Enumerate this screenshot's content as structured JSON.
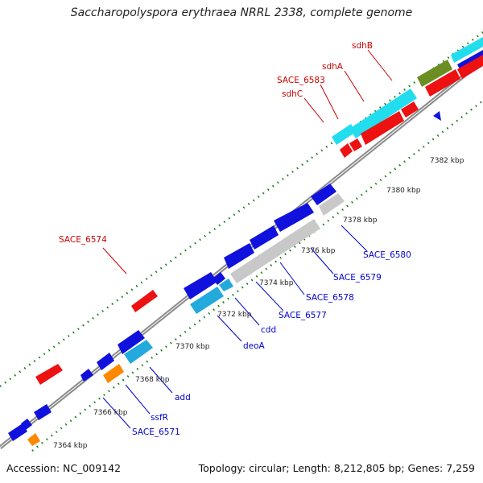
{
  "title": "Saccharopolyspora erythraea NRRL 2338, complete genome",
  "footer": {
    "accession": "Accession: NC_009142",
    "topology": "Topology: circular; Length: 8,212,805 bp; Genes: 7,259"
  },
  "colors": {
    "backbone": "#8a8a8a",
    "tick": "#1a7a1a",
    "label_red": "#cc0000",
    "label_blue": "#0000cc",
    "red": "#ee1111",
    "blue": "#1111dd",
    "cyan": "#22ddee",
    "cyan_dark": "#22aadd",
    "gray": "#c8c8c8",
    "orange": "#ff8800",
    "olive": "#6b8e23"
  },
  "ticks": [
    "7364 kbp",
    "7366 kbp",
    "7368 kbp",
    "7370 kbp",
    "7372 kbp",
    "7374 kbp",
    "7376 kbp",
    "7378 kbp",
    "7380 kbp",
    "7382 kbp"
  ],
  "labels": [
    "sdhB",
    "sdhA",
    "SACE_6583",
    "sdhC",
    "SACE_6574",
    "SACE_6580",
    "SACE_6579",
    "SACE_6578",
    "SACE_6577",
    "cdd",
    "deoA",
    "add",
    "ssfR",
    "SACE_6571"
  ]
}
